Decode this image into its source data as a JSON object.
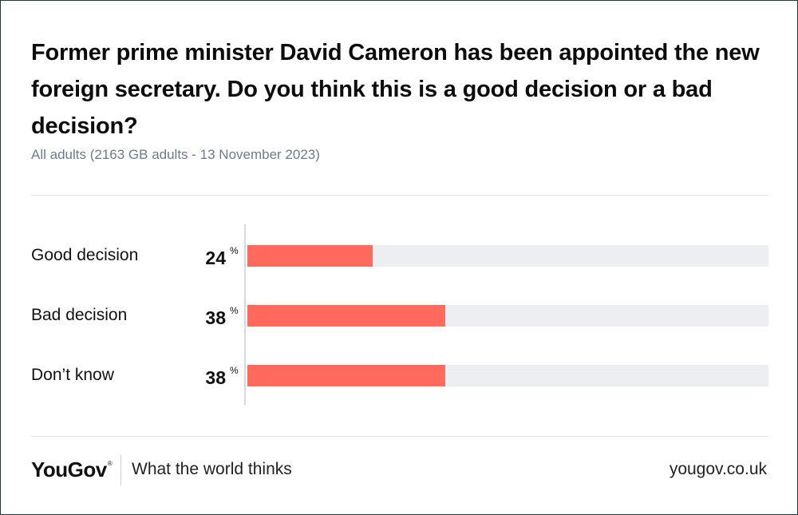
{
  "chart_data": {
    "type": "bar",
    "orientation": "horizontal",
    "title": "Former prime minister David Cameron has been appointed the new foreign secretary. Do you think this is a good decision or a bad decision?",
    "subtitle": "All adults (2163 GB adults - 13 November 2023)",
    "categories": [
      "Good decision",
      "Bad decision",
      "Don’t know"
    ],
    "values": [
      24,
      38,
      38
    ],
    "unit": "%",
    "xlim": [
      0,
      100
    ],
    "colors": {
      "bar": "#ff6a5c",
      "track": "#eceef2"
    }
  },
  "footer": {
    "brand": "YouGov",
    "brand_mark": "®",
    "tagline": "What the world thinks",
    "website": "yougov.co.uk"
  }
}
